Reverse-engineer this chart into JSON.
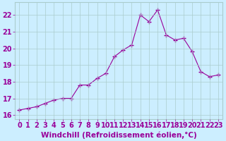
{
  "x": [
    0,
    1,
    2,
    3,
    4,
    5,
    6,
    7,
    8,
    9,
    10,
    11,
    12,
    13,
    14,
    15,
    16,
    17,
    18,
    19,
    20,
    21,
    22,
    23
  ],
  "y": [
    16.3,
    16.4,
    16.5,
    16.7,
    16.9,
    17.0,
    17.0,
    17.8,
    17.8,
    18.2,
    18.5,
    19.5,
    19.9,
    20.2,
    22.0,
    21.6,
    22.3,
    20.8,
    20.5,
    20.6,
    19.8,
    18.6,
    18.3,
    18.4
  ],
  "line_color": "#990099",
  "marker": "+",
  "marker_size": 4,
  "xlabel": "Windchill (Refroidissement éolien,°C)",
  "xlim": [
    -0.5,
    23.5
  ],
  "ylim": [
    15.75,
    22.75
  ],
  "yticks": [
    16,
    17,
    18,
    19,
    20,
    21,
    22
  ],
  "xticks": [
    0,
    1,
    2,
    3,
    4,
    5,
    6,
    7,
    8,
    9,
    10,
    11,
    12,
    13,
    14,
    15,
    16,
    17,
    18,
    19,
    20,
    21,
    22,
    23
  ],
  "bg_color": "#cceeff",
  "grid_color": "#aacccc",
  "font_color": "#990099",
  "tick_fontsize": 7,
  "xlabel_fontsize": 7.5,
  "linewidth": 0.8,
  "marker_linewidth": 1.0
}
